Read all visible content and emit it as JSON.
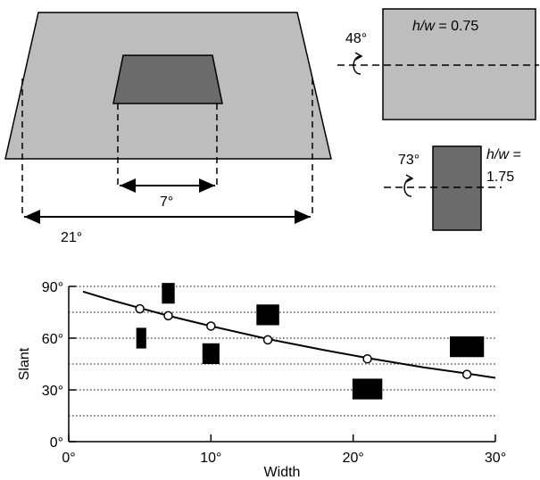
{
  "top_left": {
    "outer_width_label": "21°",
    "inner_width_label": "7°",
    "outer_fill": "#bdbdbd",
    "inner_fill": "#6b6b6b"
  },
  "top_right": {
    "panel1": {
      "angle_label": "48°",
      "ratio_label_var": "h/w",
      "ratio_label_val": " = 0.75",
      "fill": "#bdbdbd"
    },
    "panel2": {
      "angle_label": "73°",
      "ratio_label_var": "h/w =",
      "ratio_label_val": "1.75",
      "fill": "#6b6b6b"
    }
  },
  "chart_data": {
    "type": "scatter",
    "xlabel": "Width",
    "ylabel": "Slant",
    "xlim": [
      0,
      30
    ],
    "ylim": [
      0,
      90
    ],
    "x_ticks": [
      0,
      10,
      20,
      30
    ],
    "x_tick_labels": [
      "0°",
      "10°",
      "20°",
      "30°"
    ],
    "y_ticks": [
      0,
      30,
      60,
      90
    ],
    "y_tick_labels": [
      "0°",
      "30°",
      "60°",
      "90°"
    ],
    "dotted_gridlines_y": [
      15,
      30,
      45,
      60,
      75,
      90
    ],
    "points": [
      {
        "x": 5,
        "y": 77
      },
      {
        "x": 7,
        "y": 73
      },
      {
        "x": 10,
        "y": 67
      },
      {
        "x": 14,
        "y": 59
      },
      {
        "x": 21,
        "y": 48
      },
      {
        "x": 28,
        "y": 39
      }
    ],
    "fit_curve": [
      {
        "x": 1,
        "y": 87
      },
      {
        "x": 3,
        "y": 82
      },
      {
        "x": 5,
        "y": 77.5
      },
      {
        "x": 7,
        "y": 73
      },
      {
        "x": 10,
        "y": 67
      },
      {
        "x": 14,
        "y": 59.5
      },
      {
        "x": 18,
        "y": 53
      },
      {
        "x": 21,
        "y": 48.5
      },
      {
        "x": 25,
        "y": 43
      },
      {
        "x": 28,
        "y": 39.5
      },
      {
        "x": 30,
        "y": 37
      }
    ],
    "rect_markers": [
      {
        "x": 5.1,
        "y": 60,
        "w": 0.7,
        "h": 12
      },
      {
        "x": 7,
        "y": 86,
        "w": 0.9,
        "h": 12
      },
      {
        "x": 10,
        "y": 51,
        "w": 1.2,
        "h": 12
      },
      {
        "x": 14,
        "y": 73.5,
        "w": 1.6,
        "h": 12
      },
      {
        "x": 21,
        "y": 30.5,
        "w": 2.1,
        "h": 12
      },
      {
        "x": 28,
        "y": 55,
        "w": 2.4,
        "h": 12
      }
    ],
    "colors": {
      "curve": "#000000",
      "marker": "#000000",
      "point_fill": "#ffffff",
      "grid": "#000000"
    }
  }
}
